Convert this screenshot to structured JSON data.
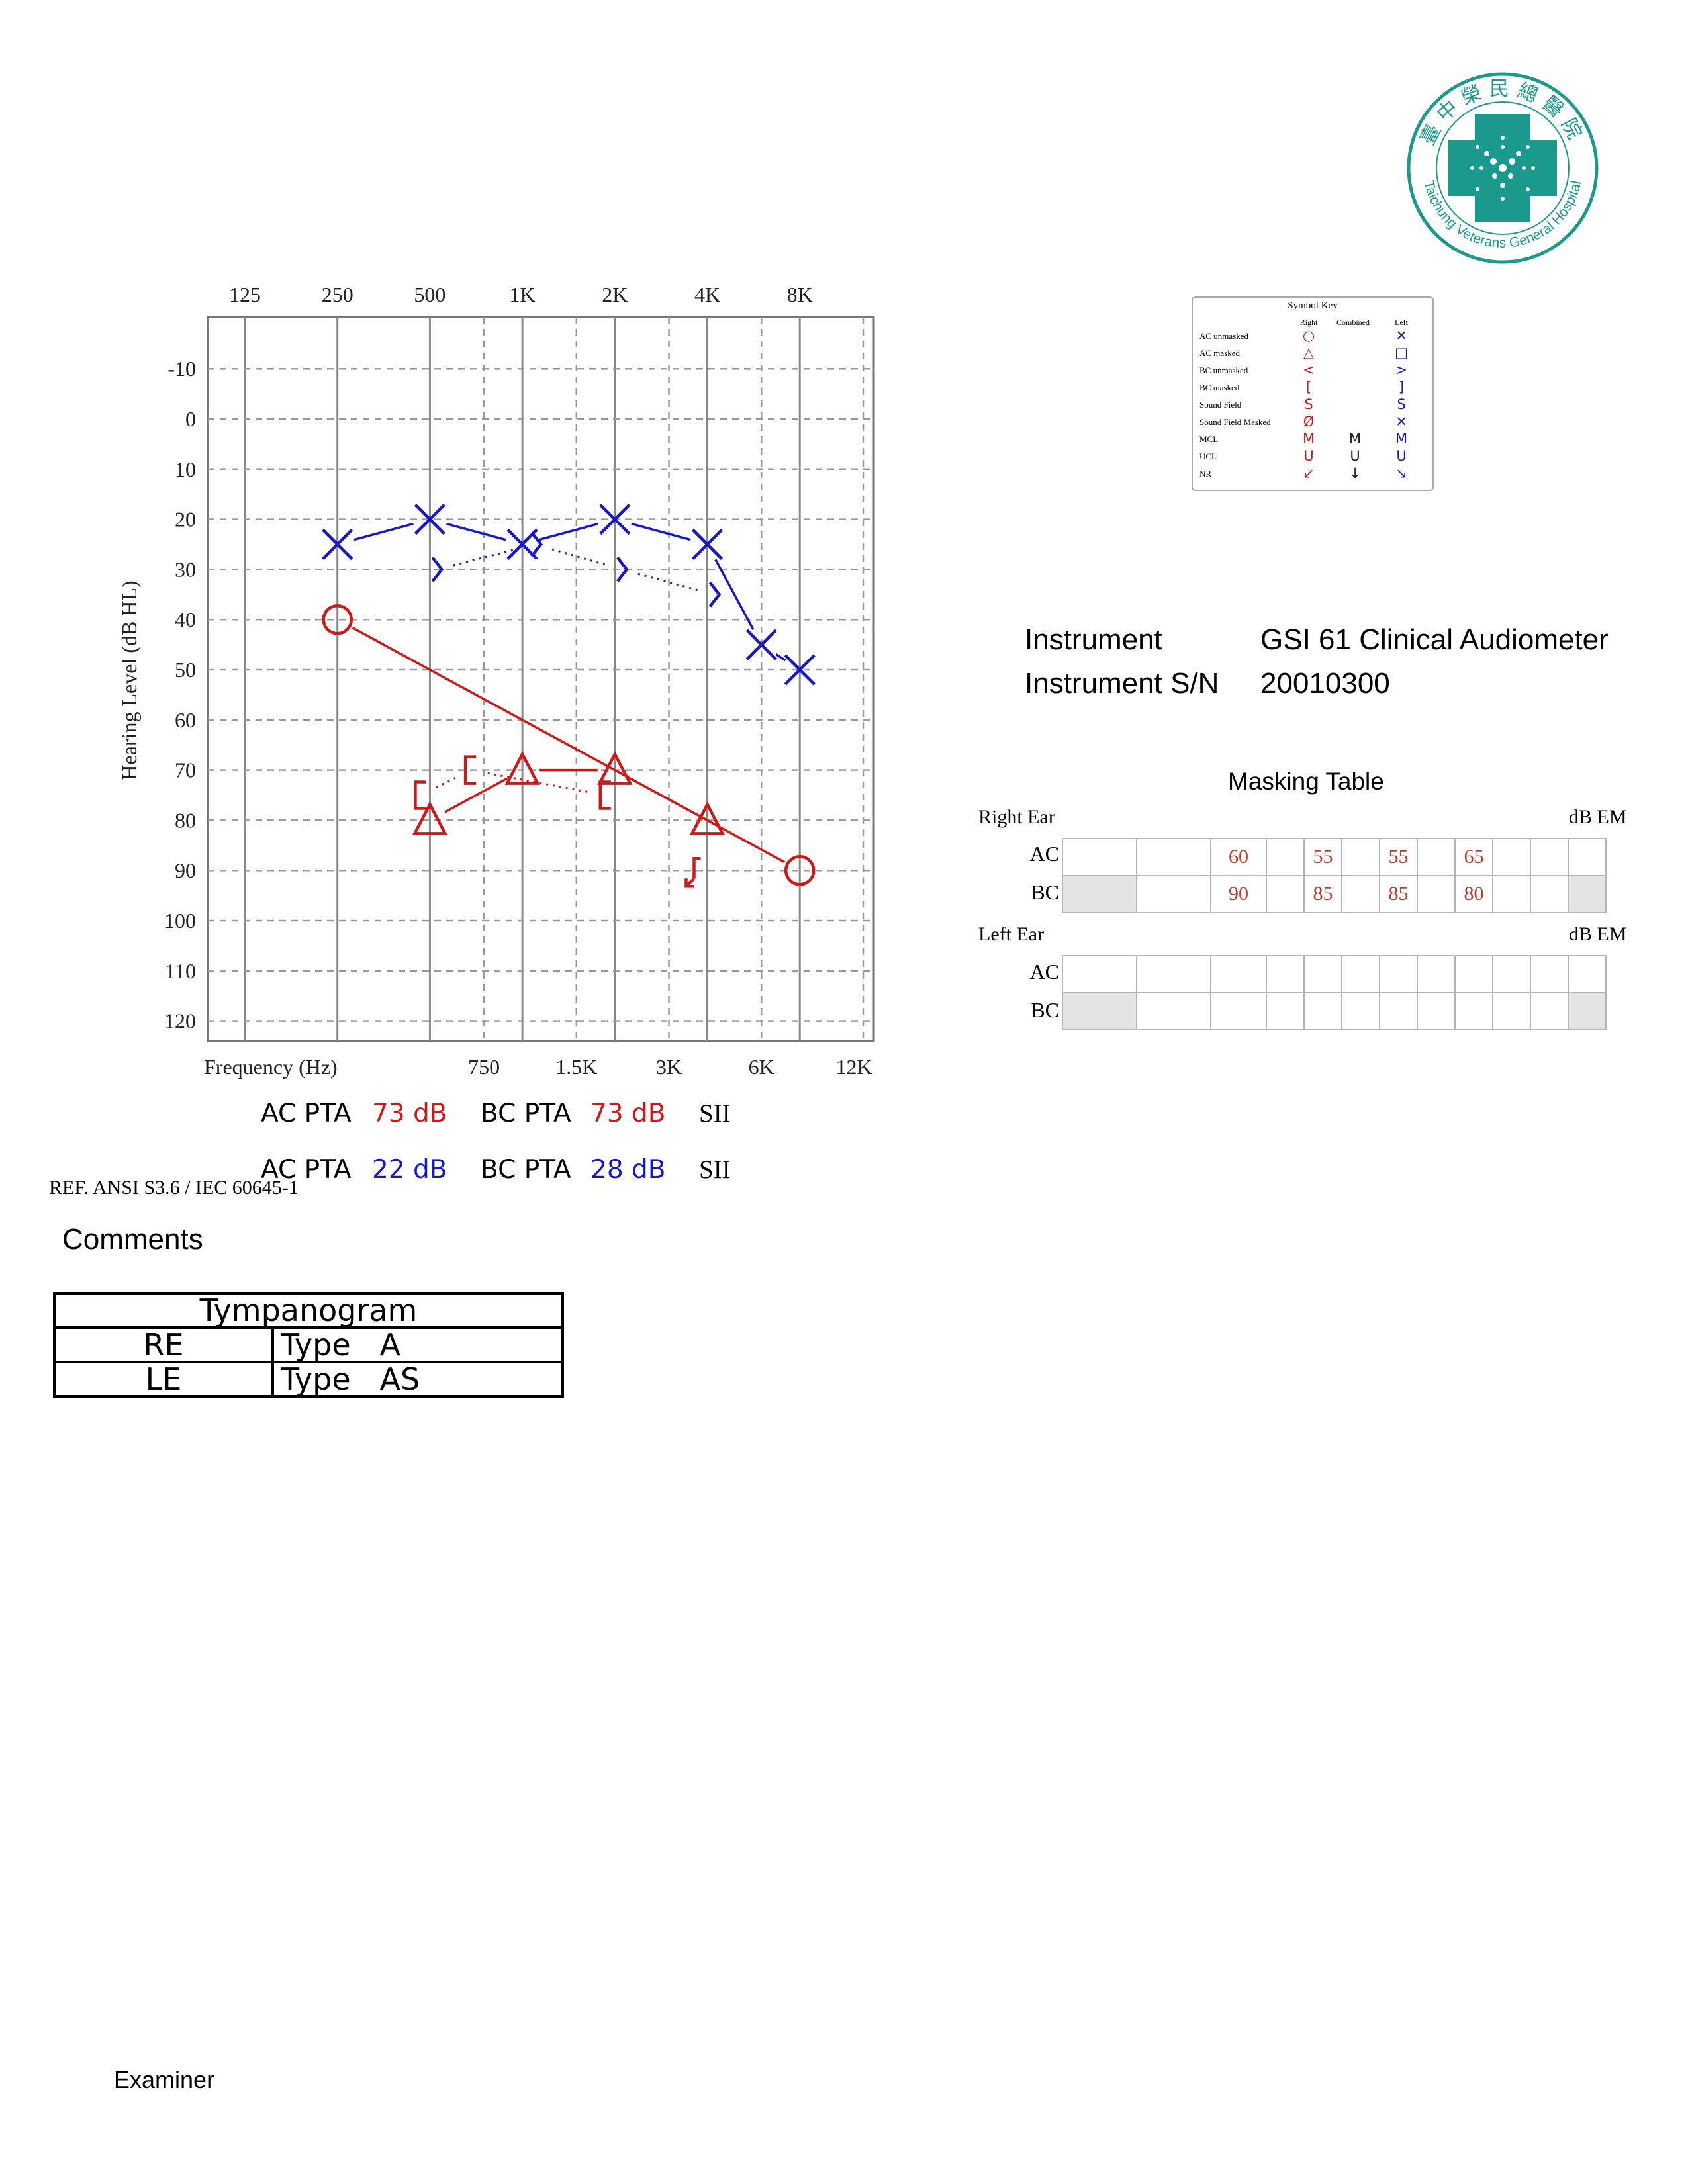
{
  "logo": {
    "chinese_name": "臺中榮民總醫院",
    "english_name": "Taichung Veterans General Hospital",
    "color": "#1a9a8c"
  },
  "chart_data": {
    "type": "line",
    "xlabel": "Frequency (Hz)",
    "ylabel": "Hearing Level (dB HL)",
    "x_ticks_top": [
      "125",
      "250",
      "500",
      "1K",
      "2K",
      "4K",
      "8K"
    ],
    "x_ticks_bottom": [
      "750",
      "1.5K",
      "3K",
      "6K",
      "12K"
    ],
    "y_ticks": [
      "-10",
      "0",
      "10",
      "20",
      "30",
      "40",
      "50",
      "60",
      "70",
      "80",
      "90",
      "100",
      "110",
      "120"
    ],
    "ylim": [
      -20,
      125
    ],
    "y_reversed": true,
    "x_scale": "log2",
    "grid": true,
    "series": [
      {
        "ear": "right",
        "symbol": "circle",
        "line": "solid",
        "color": "#d01818",
        "points": [
          [
            250,
            40
          ],
          [
            8000,
            90
          ]
        ]
      },
      {
        "ear": "right",
        "symbol": "triangle",
        "line": "solid",
        "color": "#d01818",
        "points": [
          [
            500,
            80
          ],
          [
            1000,
            70
          ],
          [
            2000,
            70
          ],
          [
            4000,
            80
          ]
        ]
      },
      {
        "ear": "right",
        "symbol": "bracket-left",
        "line": "dotted",
        "color": "#d01818",
        "points": [
          [
            500,
            75
          ],
          [
            750,
            70
          ],
          [
            2000,
            75
          ]
        ]
      },
      {
        "ear": "right",
        "symbol": "bracket-left-nr",
        "line": "none",
        "color": "#d01818",
        "points": [
          [
            4000,
            90
          ]
        ]
      },
      {
        "ear": "left",
        "symbol": "x",
        "line": "solid",
        "color": "#1818c8",
        "points": [
          [
            250,
            25
          ],
          [
            500,
            20
          ],
          [
            1000,
            25
          ],
          [
            2000,
            20
          ],
          [
            4000,
            25
          ],
          [
            6000,
            45
          ],
          [
            8000,
            50
          ]
        ]
      },
      {
        "ear": "left",
        "symbol": "angle-right",
        "line": "dotted",
        "color": "#1818c8",
        "points": [
          [
            500,
            30
          ],
          [
            1000,
            25
          ],
          [
            2000,
            30
          ],
          [
            4000,
            35
          ]
        ]
      }
    ]
  },
  "symbol_key": {
    "title": "Symbol Key",
    "headers": [
      "Right",
      "Combined",
      "Left"
    ],
    "rows": [
      {
        "label": "AC unmasked",
        "right": "○",
        "combined": "",
        "left": "✕"
      },
      {
        "label": "AC masked",
        "right": "△",
        "combined": "",
        "left": "□"
      },
      {
        "label": "BC unmasked",
        "right": "<",
        "combined": "",
        "left": ">"
      },
      {
        "label": "BC masked",
        "right": "[",
        "combined": "",
        "left": "]"
      },
      {
        "label": "Sound Field",
        "right": "S",
        "combined": "",
        "left": "S"
      },
      {
        "label": "Sound Field Masked",
        "right": "Ø",
        "combined": "",
        "left": "✕"
      },
      {
        "label": "MCL",
        "right": "M",
        "combined": "M",
        "left": "M"
      },
      {
        "label": "UCL",
        "right": "U",
        "combined": "U",
        "left": "U"
      },
      {
        "label": "NR",
        "right": "↙",
        "combined": "↓",
        "left": "↘"
      }
    ]
  },
  "instrument": {
    "label": "Instrument",
    "value": "GSI 61 Clinical Audiometer",
    "sn_label": "Instrument S/N",
    "sn_value": "20010300"
  },
  "masking": {
    "title": "Masking Table",
    "unit": "dB EM",
    "right_ear": {
      "label": "Right Ear",
      "rows": [
        {
          "name": "AC",
          "cells": [
            "",
            "",
            "60",
            "",
            "55",
            "",
            "55",
            "",
            "65",
            "",
            "",
            ""
          ]
        },
        {
          "name": "BC",
          "cells": [
            "",
            "",
            "90",
            "",
            "85",
            "",
            "85",
            "",
            "80",
            "",
            "",
            ""
          ]
        }
      ]
    },
    "left_ear": {
      "label": "Left Ear",
      "rows": [
        {
          "name": "AC",
          "cells": [
            "",
            "",
            "",
            "",
            "",
            "",
            "",
            "",
            "",
            "",
            "",
            ""
          ]
        },
        {
          "name": "BC",
          "cells": [
            "",
            "",
            "",
            "",
            "",
            "",
            "",
            "",
            "",
            "",
            "",
            ""
          ]
        }
      ]
    }
  },
  "pta": {
    "right": {
      "ac_label": "AC PTA",
      "ac_value": "73 dB",
      "bc_label": "BC PTA",
      "bc_value": "73 dB",
      "sii": "SII"
    },
    "left": {
      "ac_label": "AC PTA",
      "ac_value": "22 dB",
      "bc_label": "BC PTA",
      "bc_value": "28 dB",
      "sii": "SII"
    }
  },
  "reference": "REF. ANSI S3.6 / IEC 60645-1",
  "comments_label": "Comments",
  "tympanogram": {
    "title": "Tympanogram",
    "rows": [
      {
        "ear": "RE",
        "type_label": "Type",
        "type_value": "A"
      },
      {
        "ear": "LE",
        "type_label": "Type",
        "type_value": "AS"
      }
    ]
  },
  "examiner_label": "Examiner"
}
